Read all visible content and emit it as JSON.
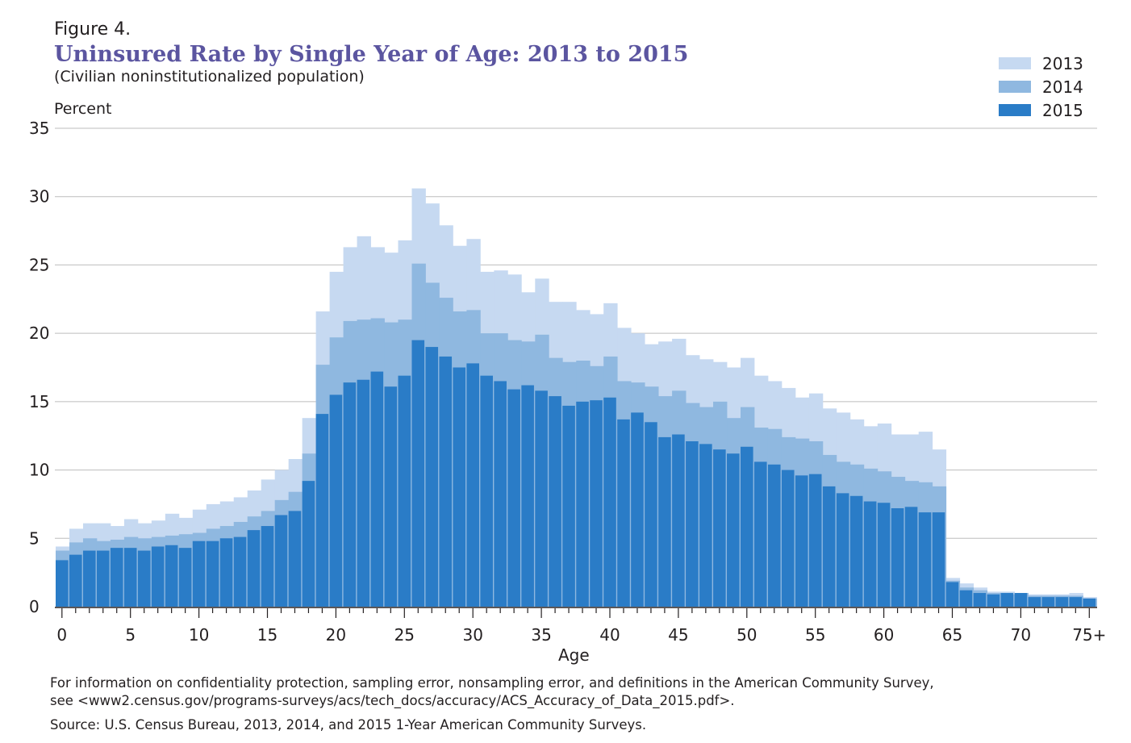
{
  "figure": {
    "label": "Figure 4.",
    "note_line1": "For information on confidentiality protection, sampling error, nonsampling error, and definitions in the American Community Survey,",
    "note_line2": "see <www2.census.gov/programs-surveys/acs/tech_docs/accuracy/ACS_Accuracy_of_Data_2015.pdf>.",
    "source": "Source: U.S. Census Bureau, 2013, 2014, and 2015 1-Year American Community Surveys."
  },
  "colors": {
    "s2013": "#c6d9f1",
    "s2014": "#8fb8e0",
    "s2015": "#2a7cc7",
    "grid": "#bdbdbd",
    "title": "#5b55a0"
  },
  "chart_data": {
    "type": "bar",
    "title": "Uninsured Rate by Single Year of Age: 2013 to 2015",
    "subtitle": "(Civilian noninstitutionalized population)",
    "ylabel": "Percent",
    "xlabel": "Age",
    "ylim": [
      0,
      35
    ],
    "yticks": [
      0,
      5,
      10,
      15,
      20,
      25,
      30,
      35
    ],
    "xtick_labels": [
      "0",
      "5",
      "10",
      "15",
      "20",
      "25",
      "30",
      "35",
      "40",
      "45",
      "50",
      "55",
      "60",
      "65",
      "70",
      "75+"
    ],
    "legend_position": "top-right",
    "grid": true,
    "categories": [
      "0",
      "1",
      "2",
      "3",
      "4",
      "5",
      "6",
      "7",
      "8",
      "9",
      "10",
      "11",
      "12",
      "13",
      "14",
      "15",
      "16",
      "17",
      "18",
      "19",
      "20",
      "21",
      "22",
      "23",
      "24",
      "25",
      "26",
      "27",
      "28",
      "29",
      "30",
      "31",
      "32",
      "33",
      "34",
      "35",
      "36",
      "37",
      "38",
      "39",
      "40",
      "41",
      "42",
      "43",
      "44",
      "45",
      "46",
      "47",
      "48",
      "49",
      "50",
      "51",
      "52",
      "53",
      "54",
      "55",
      "56",
      "57",
      "58",
      "59",
      "60",
      "61",
      "62",
      "63",
      "64",
      "65",
      "66",
      "67",
      "68",
      "69",
      "70",
      "71",
      "72",
      "73",
      "74",
      "75+"
    ],
    "series": [
      {
        "name": "2013",
        "values": [
          4.4,
          5.7,
          6.1,
          6.1,
          5.9,
          6.4,
          6.1,
          6.3,
          6.8,
          6.5,
          7.1,
          7.5,
          7.7,
          8.0,
          8.5,
          9.3,
          10.0,
          10.8,
          13.8,
          21.6,
          24.5,
          26.3,
          27.1,
          26.3,
          25.9,
          26.8,
          30.6,
          29.5,
          27.9,
          26.4,
          26.9,
          24.5,
          24.6,
          24.3,
          23.0,
          24.0,
          22.3,
          22.3,
          21.7,
          21.4,
          22.2,
          20.4,
          20.0,
          19.2,
          19.4,
          19.6,
          18.4,
          18.1,
          17.9,
          17.5,
          18.2,
          16.9,
          16.5,
          16.0,
          15.3,
          15.6,
          14.5,
          14.2,
          13.7,
          13.2,
          13.4,
          12.6,
          12.6,
          12.8,
          11.5,
          2.1,
          1.7,
          1.4,
          1.1,
          1.1,
          1.0,
          0.9,
          0.9,
          0.9,
          1.0,
          0.7
        ]
      },
      {
        "name": "2014",
        "values": [
          4.1,
          4.7,
          5.0,
          4.8,
          4.9,
          5.1,
          5.0,
          5.1,
          5.2,
          5.3,
          5.4,
          5.7,
          5.9,
          6.2,
          6.6,
          7.0,
          7.8,
          8.4,
          11.2,
          17.7,
          19.7,
          20.9,
          21.0,
          21.1,
          20.8,
          21.0,
          25.1,
          23.7,
          22.6,
          21.6,
          21.7,
          20.0,
          20.0,
          19.5,
          19.4,
          19.9,
          18.2,
          17.9,
          18.0,
          17.6,
          18.3,
          16.5,
          16.4,
          16.1,
          15.4,
          15.8,
          14.9,
          14.6,
          15.0,
          13.8,
          14.6,
          13.1,
          13.0,
          12.4,
          12.3,
          12.1,
          11.1,
          10.6,
          10.4,
          10.1,
          9.9,
          9.5,
          9.2,
          9.1,
          8.8,
          1.9,
          1.4,
          1.2,
          1.0,
          0.9,
          1.0,
          0.8,
          0.8,
          0.8,
          0.8,
          0.6
        ]
      },
      {
        "name": "2015",
        "values": [
          3.4,
          3.8,
          4.1,
          4.1,
          4.3,
          4.3,
          4.1,
          4.4,
          4.5,
          4.3,
          4.8,
          4.8,
          5.0,
          5.1,
          5.6,
          5.9,
          6.7,
          7.0,
          9.2,
          14.1,
          15.5,
          16.4,
          16.6,
          17.2,
          16.1,
          16.9,
          19.5,
          19.0,
          18.3,
          17.5,
          17.8,
          16.9,
          16.5,
          15.9,
          16.2,
          15.8,
          15.4,
          14.7,
          15.0,
          15.1,
          15.3,
          13.7,
          14.2,
          13.5,
          12.4,
          12.6,
          12.1,
          11.9,
          11.5,
          11.2,
          11.7,
          10.6,
          10.4,
          10.0,
          9.6,
          9.7,
          8.8,
          8.3,
          8.1,
          7.7,
          7.6,
          7.2,
          7.3,
          6.9,
          6.9,
          1.8,
          1.2,
          1.0,
          0.9,
          1.0,
          1.0,
          0.7,
          0.7,
          0.7,
          0.7,
          0.6
        ]
      }
    ]
  }
}
